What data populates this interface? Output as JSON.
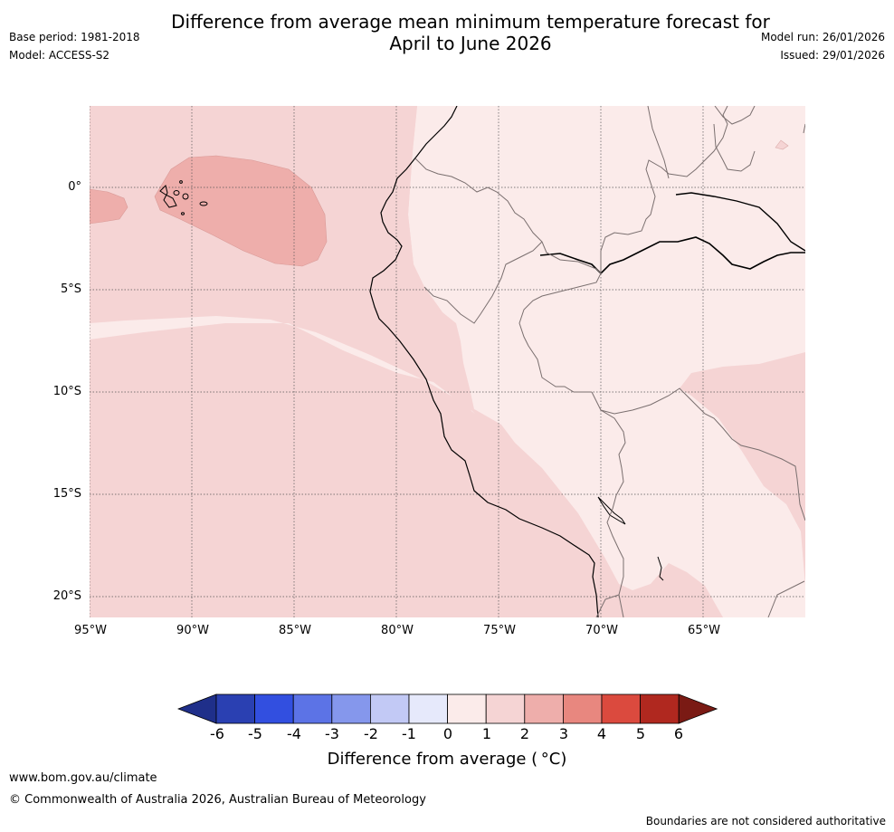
{
  "title": {
    "line1": "Difference from average mean minimum temperature forecast for",
    "line2": "April to June 2026"
  },
  "meta_left": {
    "base_period": "Base period: 1981-2018",
    "model": "Model: ACCESS-S2"
  },
  "meta_right": {
    "model_run": "Model run: 26/01/2026",
    "issued": "Issued: 29/01/2026"
  },
  "map": {
    "lat_labels": [
      "0°",
      "5°S",
      "10°S",
      "15°S",
      "20°S"
    ],
    "lon_labels": [
      "95°W",
      "90°W",
      "85°W",
      "80°W",
      "75°W",
      "70°W",
      "65°W"
    ]
  },
  "colorbar": {
    "title": "Difference from average ( °C)",
    "tick_labels": [
      "-6",
      "-5",
      "-4",
      "-3",
      "-2",
      "-1",
      "0",
      "1",
      "2",
      "3",
      "4",
      "5",
      "6"
    ],
    "colors": [
      "#1f2f8a",
      "#2a40b2",
      "#324fe0",
      "#5c73e6",
      "#8597ec",
      "#c2c9f5",
      "#e6e9fb",
      "#fbebea",
      "#f5d4d4",
      "#eeaeab",
      "#e8877f",
      "#db4a3e",
      "#b0281f",
      "#7a1a14"
    ]
  },
  "footer": {
    "website": "www.bom.gov.au/climate",
    "copyright": "© Commonwealth of Australia 2026, Australian Bureau of Meteorology",
    "disclaimer": "Boundaries are not considered authoritative"
  }
}
